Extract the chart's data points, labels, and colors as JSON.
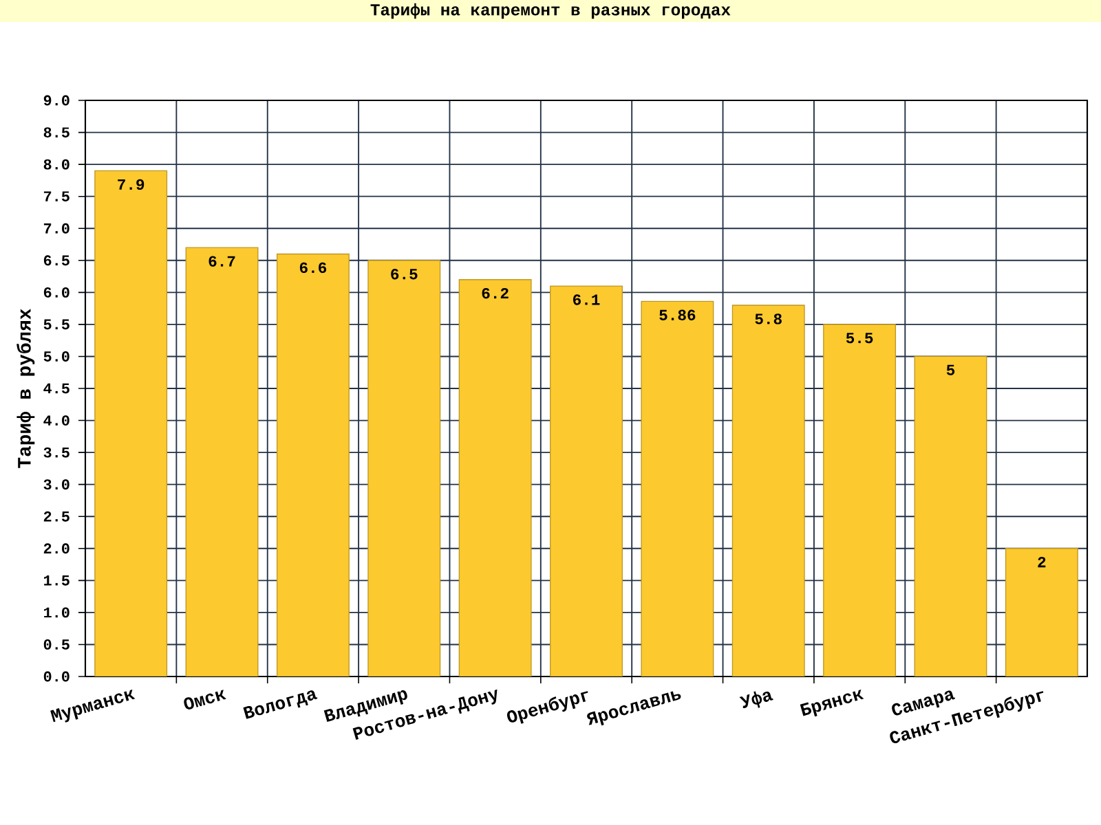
{
  "chart_data": {
    "type": "bar",
    "title": "Тарифы на капремонт в разных городах",
    "ylabel": "Тариф в рублях",
    "categories": [
      "Мурманск",
      "Омск",
      "Вологда",
      "Владимир",
      "Ростов-на-Дону",
      "Оренбург",
      "Ярославль",
      "Уфа",
      "Брянск",
      "Самара",
      "Санкт-Петербург"
    ],
    "values": [
      7.9,
      6.7,
      6.6,
      6.5,
      6.2,
      6.1,
      5.86,
      5.8,
      5.5,
      5,
      2
    ],
    "color": "#fcc92f",
    "ylim": [
      0,
      9
    ],
    "yticks": [
      {
        "value": 0,
        "label": "0.0"
      },
      0.5,
      {
        "value": 1,
        "label": "1.0"
      },
      1.5,
      {
        "value": 2,
        "label": "2.0"
      },
      2.5,
      {
        "value": 3,
        "label": "3.0"
      },
      3.5,
      {
        "value": 4,
        "label": "4.0"
      },
      4.5,
      {
        "value": 5,
        "label": "5.0"
      },
      5.5,
      {
        "value": 6,
        "label": "6.0"
      },
      6.5,
      {
        "value": 7,
        "label": "7.0"
      },
      7.5,
      {
        "value": 8,
        "label": "8.0"
      },
      8.5,
      {
        "value": 9,
        "label": "9.0"
      }
    ],
    "grid": true,
    "data_labels": true
  }
}
